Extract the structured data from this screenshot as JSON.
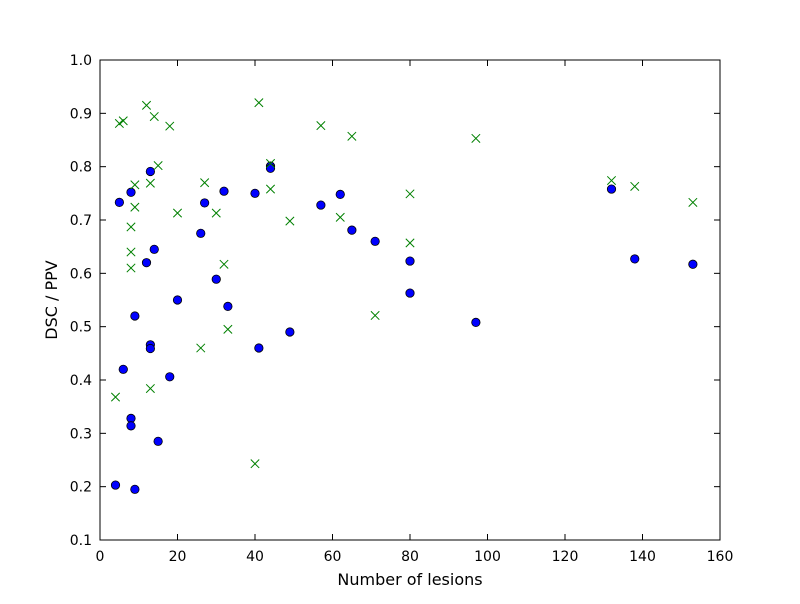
{
  "chart_data": {
    "type": "scatter",
    "title": "",
    "xlabel": "Number of lesions",
    "ylabel": "DSC / PPV",
    "xlim": [
      0,
      160
    ],
    "ylim": [
      0.1,
      1.0
    ],
    "xticks": [
      0,
      20,
      40,
      60,
      80,
      100,
      120,
      140,
      160
    ],
    "yticks": [
      0.1,
      0.2,
      0.3,
      0.4,
      0.5,
      0.6,
      0.7,
      0.8,
      0.9,
      1.0
    ],
    "xtick_labels": [
      "0",
      "20",
      "40",
      "60",
      "80",
      "100",
      "120",
      "140",
      "160"
    ],
    "ytick_labels": [
      "0.1",
      "0.2",
      "0.3",
      "0.4",
      "0.5",
      "0.6",
      "0.7",
      "0.8",
      "0.9",
      "1.0"
    ],
    "grid": false,
    "legend": null,
    "series": [
      {
        "marker": "circle",
        "color": "#0000ff",
        "points": [
          [
            4,
            0.203
          ],
          [
            5,
            0.733
          ],
          [
            6,
            0.42
          ],
          [
            8,
            0.752
          ],
          [
            8,
            0.328
          ],
          [
            8,
            0.314
          ],
          [
            9,
            0.52
          ],
          [
            9,
            0.195
          ],
          [
            12,
            0.62
          ],
          [
            13,
            0.791
          ],
          [
            13,
            0.466
          ],
          [
            13,
            0.459
          ],
          [
            14,
            0.645
          ],
          [
            15,
            0.285
          ],
          [
            18,
            0.406
          ],
          [
            20,
            0.55
          ],
          [
            26,
            0.675
          ],
          [
            27,
            0.732
          ],
          [
            30,
            0.589
          ],
          [
            32,
            0.754
          ],
          [
            33,
            0.538
          ],
          [
            40,
            0.75
          ],
          [
            41,
            0.46
          ],
          [
            44,
            0.801
          ],
          [
            44,
            0.797
          ],
          [
            49,
            0.49
          ],
          [
            57,
            0.728
          ],
          [
            62,
            0.748
          ],
          [
            65,
            0.681
          ],
          [
            71,
            0.66
          ],
          [
            80,
            0.623
          ],
          [
            80,
            0.563
          ],
          [
            97,
            0.508
          ],
          [
            132,
            0.758
          ],
          [
            138,
            0.627
          ],
          [
            153,
            0.617
          ]
        ]
      },
      {
        "marker": "x",
        "color": "#008000",
        "points": [
          [
            4,
            0.368
          ],
          [
            5,
            0.881
          ],
          [
            6,
            0.886
          ],
          [
            8,
            0.687
          ],
          [
            8,
            0.64
          ],
          [
            8,
            0.61
          ],
          [
            9,
            0.766
          ],
          [
            9,
            0.724
          ],
          [
            12,
            0.915
          ],
          [
            13,
            0.769
          ],
          [
            13,
            0.384
          ],
          [
            14,
            0.894
          ],
          [
            15,
            0.802
          ],
          [
            18,
            0.876
          ],
          [
            20,
            0.713
          ],
          [
            26,
            0.46
          ],
          [
            27,
            0.77
          ],
          [
            30,
            0.713
          ],
          [
            32,
            0.617
          ],
          [
            33,
            0.495
          ],
          [
            40,
            0.243
          ],
          [
            41,
            0.92
          ],
          [
            44,
            0.806
          ],
          [
            44,
            0.758
          ],
          [
            49,
            0.698
          ],
          [
            57,
            0.877
          ],
          [
            62,
            0.705
          ],
          [
            65,
            0.857
          ],
          [
            71,
            0.521
          ],
          [
            80,
            0.749
          ],
          [
            80,
            0.657
          ],
          [
            97,
            0.853
          ],
          [
            132,
            0.774
          ],
          [
            138,
            0.763
          ],
          [
            153,
            0.733
          ]
        ]
      }
    ]
  }
}
